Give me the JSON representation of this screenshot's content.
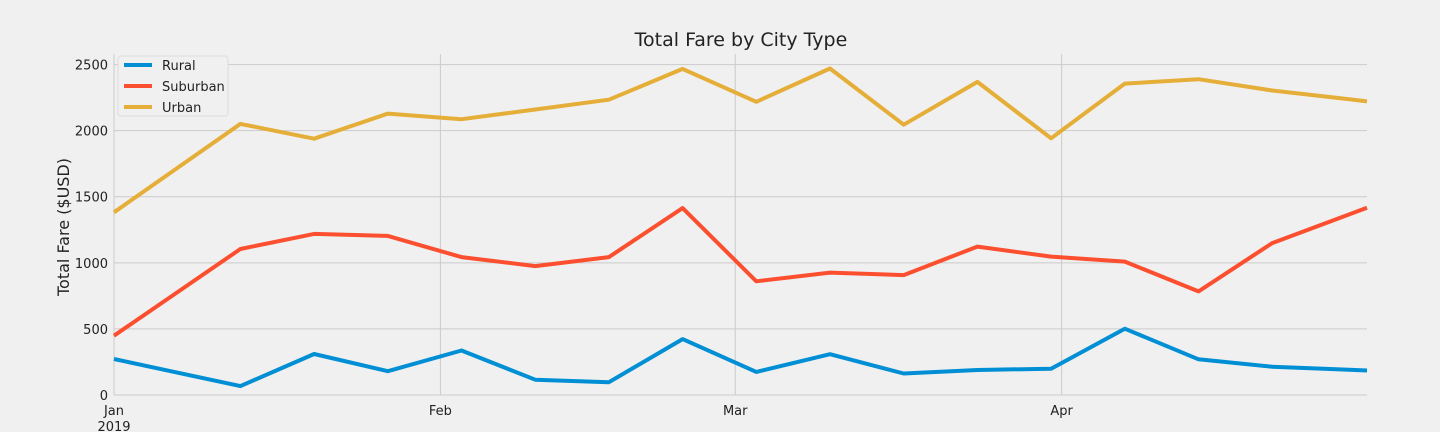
{
  "chart_data": {
    "type": "line",
    "title": "Total Fare by City Type",
    "xlabel": "",
    "ylabel": "Total Fare ($USD)",
    "x": [
      "2019-01-06",
      "2019-01-13",
      "2019-01-20",
      "2019-01-27",
      "2019-02-03",
      "2019-02-10",
      "2019-02-17",
      "2019-02-24",
      "2019-03-03",
      "2019-03-10",
      "2019-03-17",
      "2019-03-24",
      "2019-03-31",
      "2019-04-07",
      "2019-04-14",
      "2019-04-21",
      "2019-04-28"
    ],
    "xlim": [
      "2019-01-01",
      "2019-04-30"
    ],
    "ylim": [
      0,
      2580
    ],
    "yticks": [
      0,
      500,
      1000,
      1500,
      2000,
      2500
    ],
    "xticks": [
      {
        "date": "2019-01-01",
        "label": "Jan",
        "sublabel": "2019"
      },
      {
        "date": "2019-02-01",
        "label": "Feb",
        "sublabel": ""
      },
      {
        "date": "2019-03-01",
        "label": "Mar",
        "sublabel": ""
      },
      {
        "date": "2019-04-01",
        "label": "Apr",
        "sublabel": ""
      }
    ],
    "grid": true,
    "legend_position": "top-left",
    "series": [
      {
        "name": "Rural",
        "color": "#008fd5",
        "values": [
          187,
          67,
          310,
          180,
          337,
          116,
          97,
          423,
          175,
          309,
          163,
          189,
          199,
          502,
          270,
          214,
          192
        ]
      },
      {
        "name": "Suburban",
        "color": "#fc4f30",
        "values": [
          722,
          1105,
          1219,
          1204,
          1043,
          975,
          1043,
          1414,
          860,
          926,
          907,
          1123,
          1047,
          1009,
          784,
          1149,
          1357
        ]
      },
      {
        "name": "Urban",
        "color": "#e5ae38",
        "values": [
          1661,
          2051,
          1939,
          2129,
          2087,
          2160,
          2234,
          2467,
          2218,
          2470,
          2045,
          2369,
          1942,
          2356,
          2389,
          2304,
          2240
        ]
      }
    ]
  }
}
